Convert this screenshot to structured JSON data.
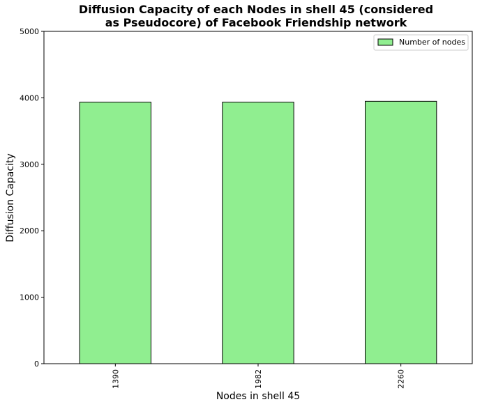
{
  "chart_data": {
    "type": "bar",
    "title_lines": [
      "Diffusion Capacity of each Nodes in shell 45 (considered",
      "as Pseudocore) of Facebook Friendship network"
    ],
    "xlabel": "Nodes in shell 45",
    "ylabel": "Diffusion Capacity",
    "categories": [
      "1390",
      "1982",
      "2260"
    ],
    "series": [
      {
        "name": "Number of nodes",
        "values": [
          3935,
          3935,
          3948
        ],
        "color": "#90ee90",
        "edgecolor": "#000000"
      }
    ],
    "ylim": [
      0,
      5000
    ],
    "yticks": [
      0,
      1000,
      2000,
      3000,
      4000,
      5000
    ],
    "grid": false,
    "legend_position": "top-right"
  }
}
